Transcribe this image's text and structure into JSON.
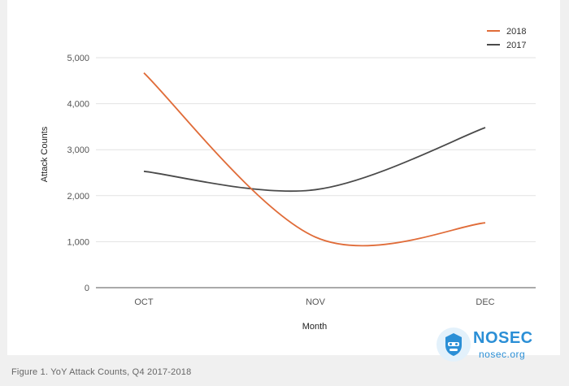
{
  "caption": "Figure 1. YoY Attack Counts, Q4 2017-2018",
  "logo": {
    "title": "NOSEC",
    "subtitle": "nosec.org",
    "icon": "hacker-mask-icon"
  },
  "colors": {
    "2018": "#e06c39",
    "2017": "#4a4a4a",
    "grid": "#e2e2e2",
    "brand": "#2b8fd6"
  },
  "chart_data": {
    "type": "line",
    "title": "",
    "xlabel": "Month",
    "ylabel": "Attack Counts",
    "categories": [
      "OCT",
      "NOV",
      "DEC"
    ],
    "ylim": [
      0,
      5000
    ],
    "yticks": [
      "0",
      "1,000",
      "2,000",
      "3,000",
      "4,000",
      "5,000"
    ],
    "grid": true,
    "legend_position": "top-right",
    "series": [
      {
        "name": "2018",
        "color": "#e06c39",
        "values": [
          4670,
          1100,
          1410
        ]
      },
      {
        "name": "2017",
        "color": "#4a4a4a",
        "values": [
          2530,
          2130,
          3480
        ]
      }
    ]
  }
}
